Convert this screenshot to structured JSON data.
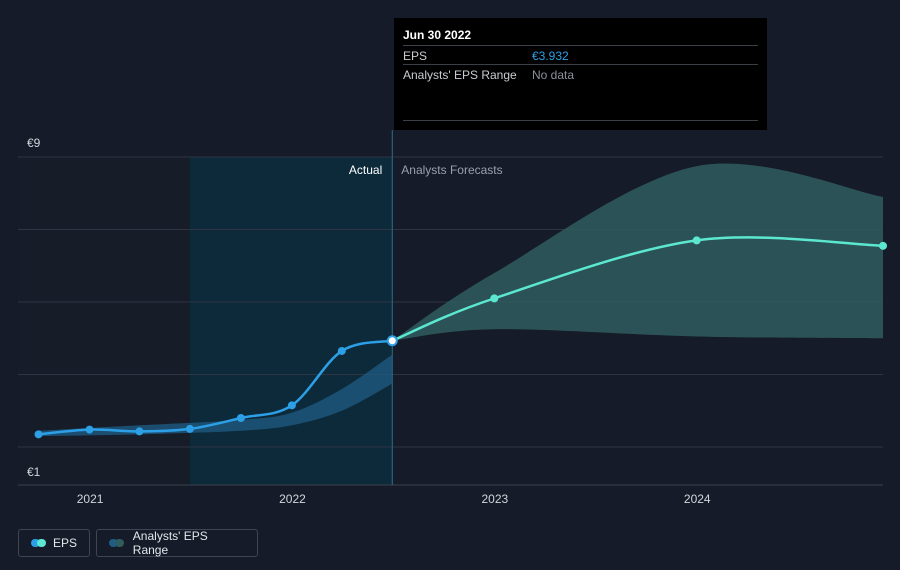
{
  "colors": {
    "background": "#151b28",
    "eps_actual": "#2c9fe6",
    "eps_forecast": "#5ce8d0",
    "range_actual": "#1f5c86",
    "range_forecast": "#2f5c5e",
    "actual_shade": "#0c2a3a",
    "grid": "#2e3442"
  },
  "chart_data": {
    "type": "line",
    "x_ticks": [
      "2021",
      "2022",
      "2023",
      "2024"
    ],
    "y_ticks": [
      "€9",
      "€1"
    ],
    "ylim": [
      1,
      9
    ],
    "xlim": [
      "2020-08-24",
      "2024-12-01"
    ],
    "grid": true,
    "legend_position": "bottom-left",
    "region_labels": {
      "actual": "Actual",
      "forecast": "Analysts Forecasts"
    },
    "divider_date": "2022-06-30",
    "past_shade_start": "2021-06-30",
    "series": [
      {
        "name": "EPS",
        "segment": "actual",
        "x": [
          "2020-09-30",
          "2020-12-31",
          "2021-03-31",
          "2021-06-30",
          "2021-09-30",
          "2021-12-31",
          "2022-03-31",
          "2022-06-30"
        ],
        "y": [
          1.35,
          1.48,
          1.43,
          1.5,
          1.8,
          2.15,
          3.65,
          3.932
        ]
      },
      {
        "name": "EPS",
        "segment": "forecast",
        "x": [
          "2022-06-30",
          "2022-12-31",
          "2023-12-31",
          "2024-12-01"
        ],
        "y": [
          3.932,
          5.1,
          6.7,
          6.55
        ]
      }
    ],
    "range": [
      {
        "name": "Analysts' EPS Range",
        "segment": "actual",
        "x": [
          "2020-09-30",
          "2021-03-31",
          "2021-09-30",
          "2021-12-31",
          "2022-03-31",
          "2022-06-30"
        ],
        "low": [
          1.3,
          1.35,
          1.45,
          1.6,
          2.0,
          2.75
        ],
        "high": [
          1.45,
          1.6,
          1.75,
          1.95,
          2.6,
          3.55
        ]
      },
      {
        "name": "Analysts' EPS Range",
        "segment": "forecast",
        "x": [
          "2022-06-30",
          "2022-12-31",
          "2023-12-31",
          "2024-12-01"
        ],
        "low": [
          3.932,
          4.25,
          4.05,
          4.0
        ],
        "high": [
          3.932,
          5.8,
          8.75,
          7.9
        ]
      }
    ]
  },
  "tooltip": {
    "date": "Jun 30 2022",
    "rows": [
      {
        "label": "EPS",
        "value": "€3.932",
        "value_color": "#2c9fe6"
      },
      {
        "label": "Analysts' EPS Range",
        "value": "No data",
        "value_color": "#8b9099"
      }
    ]
  },
  "legend": {
    "items": [
      {
        "label": "EPS",
        "color_a": "#2c9fe6",
        "color_b": "#5ce8d0"
      },
      {
        "label": "Analysts' EPS Range",
        "color_a": "#1f5c86",
        "color_b": "#2f5c5e"
      }
    ]
  }
}
